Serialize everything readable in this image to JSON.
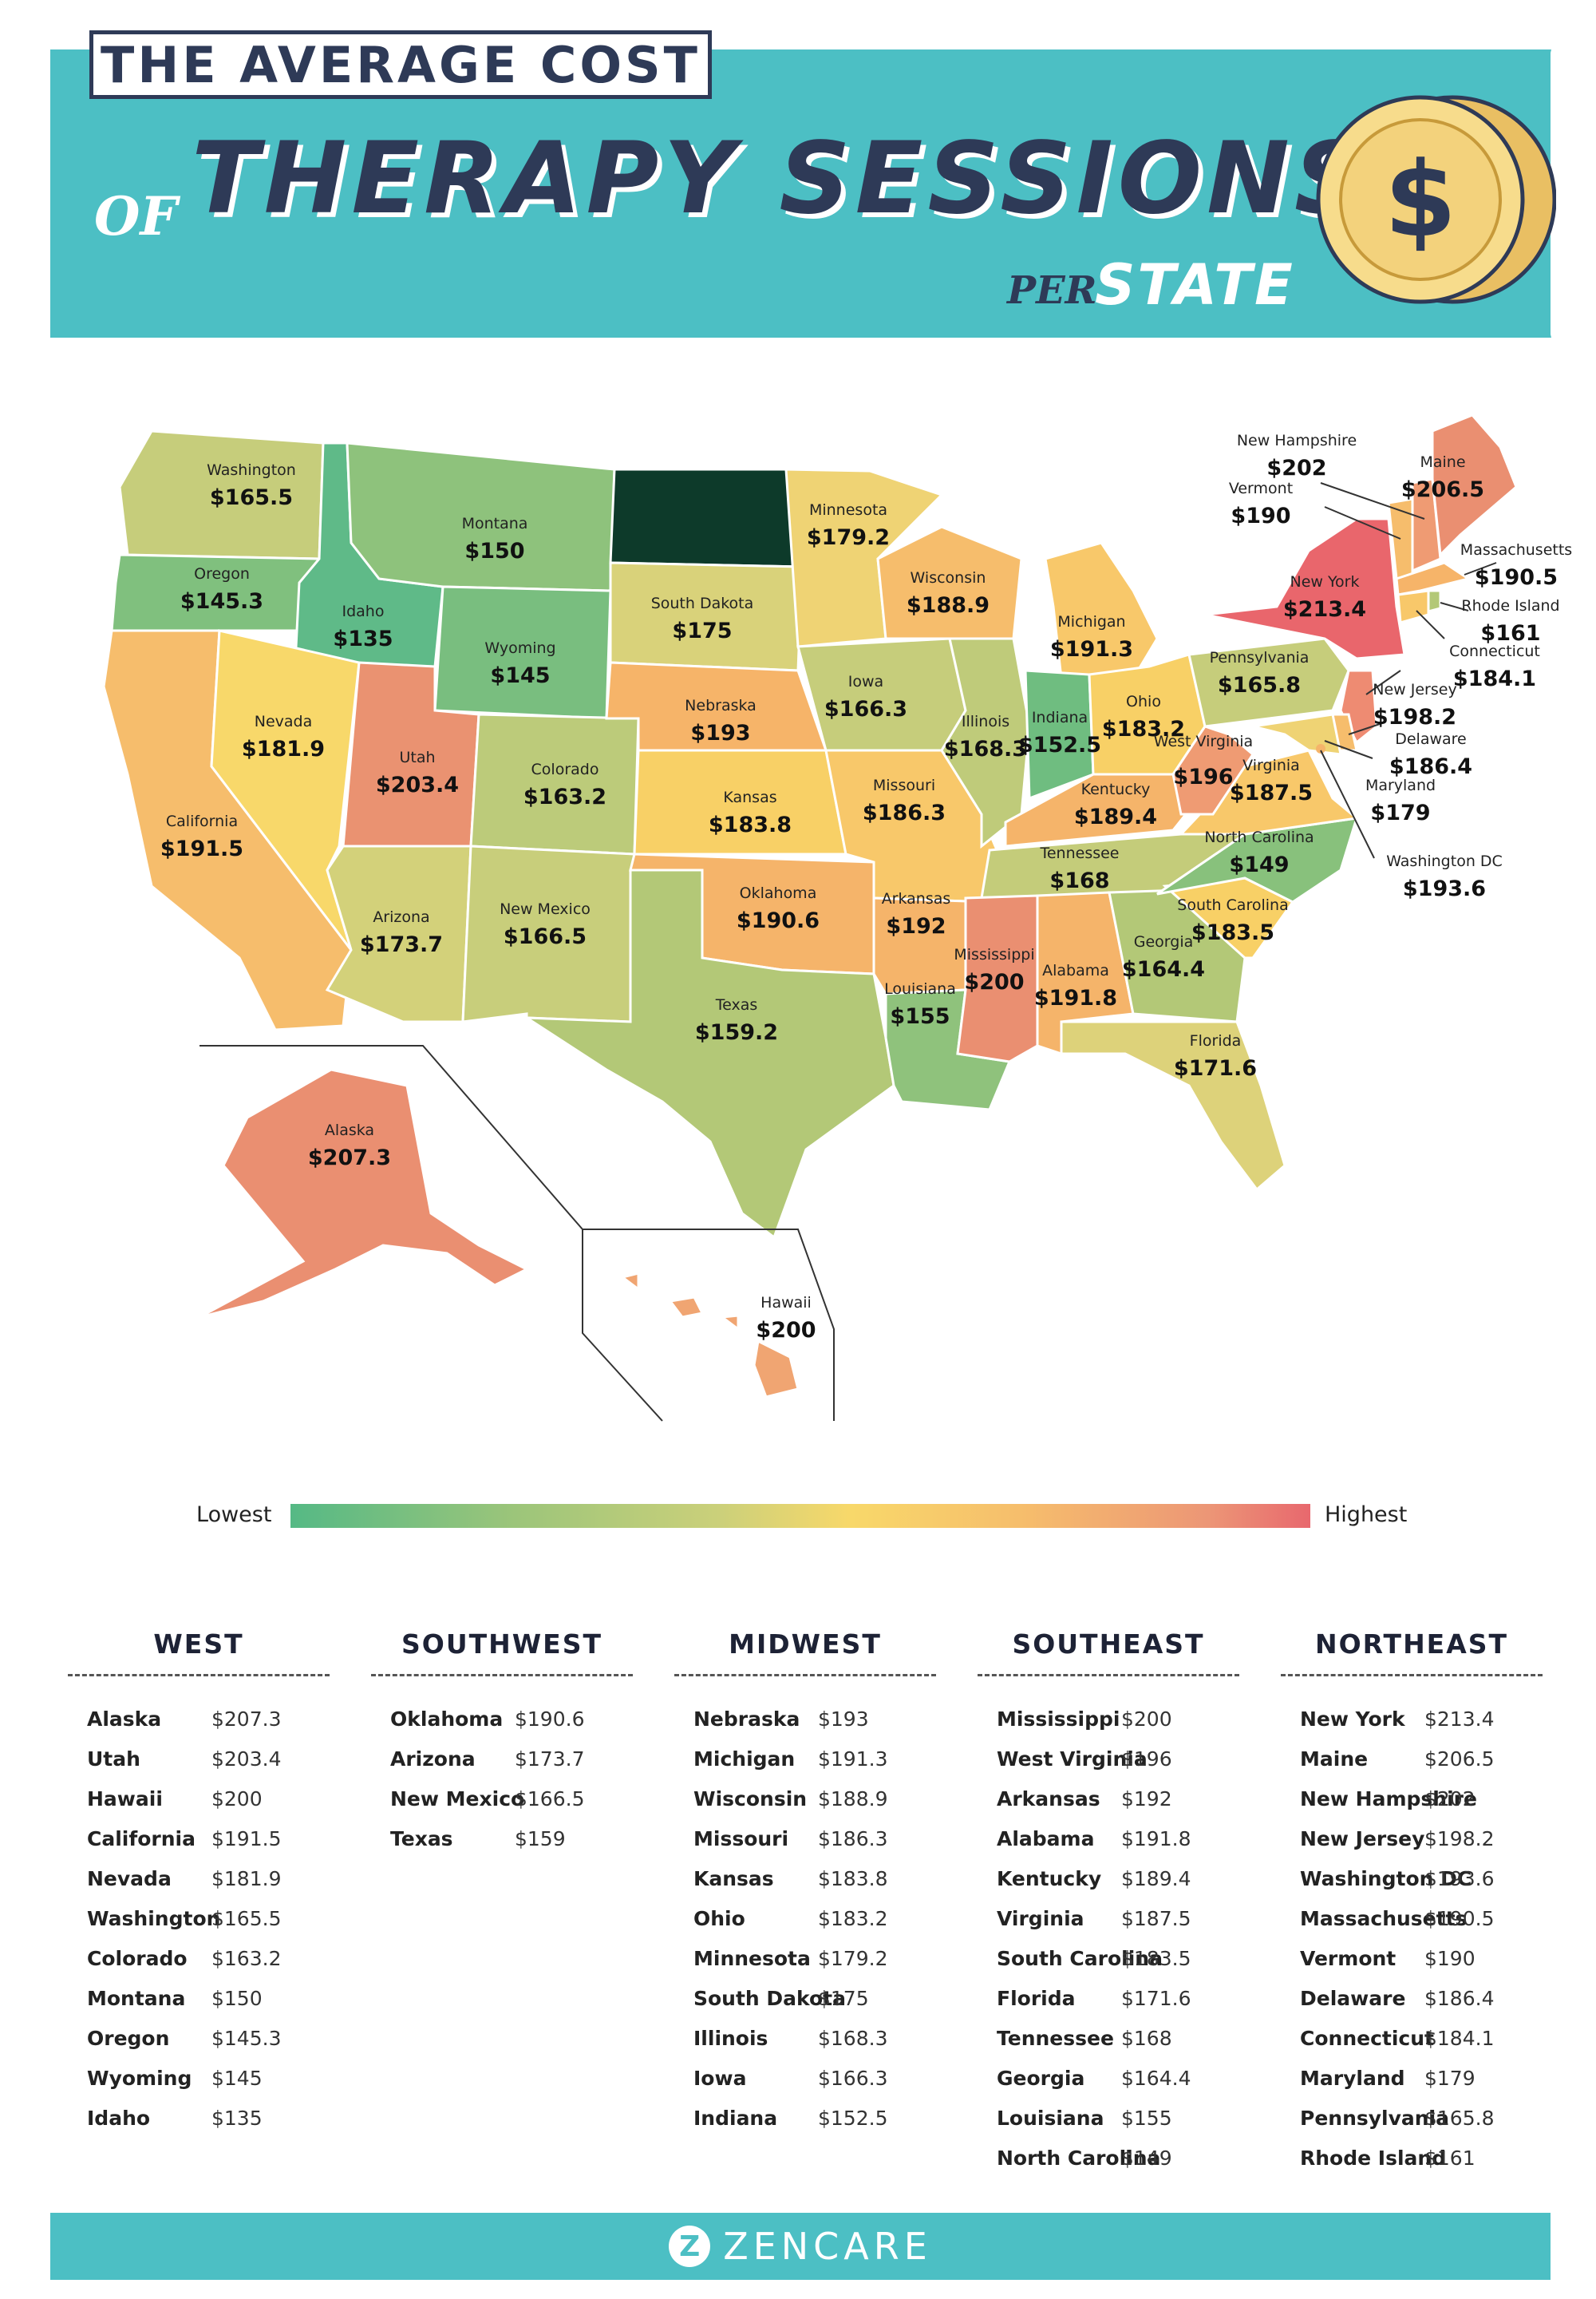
{
  "header": {
    "top_title": "THE AVERAGE COST",
    "of_word": "OF",
    "main_title": "THERAPY SESSIONS",
    "per_word": "PER",
    "state_word": "STATE",
    "coin_symbol": "$"
  },
  "colors": {
    "banner": "#4cbfc4",
    "title_dark": "#2e3a57",
    "coin_gold": "#f5d98a",
    "coin_edge": "#c79a3a",
    "lowest": "#55b985",
    "highest": "#e8686e"
  },
  "map_states": {
    "washington": {
      "name": "Washington",
      "value": "$165.5"
    },
    "oregon": {
      "name": "Oregon",
      "value": "$145.3"
    },
    "california": {
      "name": "California",
      "value": "$191.5"
    },
    "idaho": {
      "name": "Idaho",
      "value": "$135"
    },
    "nevada": {
      "name": "Nevada",
      "value": "$181.9"
    },
    "montana": {
      "name": "Montana",
      "value": "$150"
    },
    "wyoming": {
      "name": "Wyoming",
      "value": "$145"
    },
    "utah": {
      "name": "Utah",
      "value": "$203.4"
    },
    "arizona": {
      "name": "Arizona",
      "value": "$173.7"
    },
    "colorado": {
      "name": "Colorado",
      "value": "$163.2"
    },
    "new_mexico": {
      "name": "New Mexico",
      "value": "$166.5"
    },
    "north_dakota": {
      "name": "",
      "value": ""
    },
    "south_dakota": {
      "name": "South Dakota",
      "value": "$175"
    },
    "nebraska": {
      "name": "Nebraska",
      "value": "$193"
    },
    "kansas": {
      "name": "Kansas",
      "value": "$183.8"
    },
    "oklahoma": {
      "name": "Oklahoma",
      "value": "$190.6"
    },
    "texas": {
      "name": "Texas",
      "value": "$159.2"
    },
    "minnesota": {
      "name": "Minnesota",
      "value": "$179.2"
    },
    "iowa": {
      "name": "Iowa",
      "value": "$166.3"
    },
    "missouri": {
      "name": "Missouri",
      "value": "$186.3"
    },
    "arkansas": {
      "name": "Arkansas",
      "value": "$192"
    },
    "louisiana": {
      "name": "Louisiana",
      "value": "$155"
    },
    "wisconsin": {
      "name": "Wisconsin",
      "value": "$188.9"
    },
    "illinois": {
      "name": "Illinois",
      "value": "$168.3"
    },
    "michigan": {
      "name": "Michigan",
      "value": "$191.3"
    },
    "indiana": {
      "name": "Indiana",
      "value": "$152.5"
    },
    "ohio": {
      "name": "Ohio",
      "value": "$183.2"
    },
    "kentucky": {
      "name": "Kentucky",
      "value": "$189.4"
    },
    "tennessee": {
      "name": "Tennessee",
      "value": "$168"
    },
    "mississippi": {
      "name": "Mississippi",
      "value": "$200"
    },
    "alabama": {
      "name": "Alabama",
      "value": "$191.8"
    },
    "georgia": {
      "name": "Georgia",
      "value": "$164.4"
    },
    "florida": {
      "name": "Florida",
      "value": "$171.6"
    },
    "south_carolina": {
      "name": "South Carolina",
      "value": "$183.5"
    },
    "north_carolina": {
      "name": "North Carolina",
      "value": "$149"
    },
    "virginia": {
      "name": "Virginia",
      "value": "$187.5"
    },
    "west_virginia": {
      "name": "West Virginia",
      "value": "$196"
    },
    "pennsylvania": {
      "name": "Pennsylvania",
      "value": "$165.8"
    },
    "new_york": {
      "name": "New York",
      "value": "$213.4"
    },
    "maine": {
      "name": "Maine",
      "value": "$206.5"
    },
    "new_hampshire": {
      "name": "New Hampshire",
      "value": "$202"
    },
    "vermont": {
      "name": "Vermont",
      "value": "$190"
    },
    "massachusetts": {
      "name": "Massachusetts",
      "value": "$190.5"
    },
    "rhode_island": {
      "name": "Rhode Island",
      "value": "$161"
    },
    "connecticut": {
      "name": "Connecticut",
      "value": "$184.1"
    },
    "new_jersey": {
      "name": "New Jersey",
      "value": "$198.2"
    },
    "delaware": {
      "name": "Delaware",
      "value": "$186.4"
    },
    "maryland": {
      "name": "Maryland",
      "value": "$179"
    },
    "washington_dc": {
      "name": "Washington DC",
      "value": "$193.6"
    },
    "alaska": {
      "name": "Alaska",
      "value": "$207.3"
    },
    "hawaii": {
      "name": "Hawaii",
      "value": "$200"
    }
  },
  "legend": {
    "lowest": "Lowest",
    "highest": "Highest"
  },
  "regions": [
    {
      "title": "WEST",
      "rows": [
        {
          "state": "Alaska",
          "cost": "$207.3"
        },
        {
          "state": "Utah",
          "cost": "$203.4"
        },
        {
          "state": "Hawaii",
          "cost": "$200"
        },
        {
          "state": "California",
          "cost": "$191.5"
        },
        {
          "state": "Nevada",
          "cost": "$181.9"
        },
        {
          "state": "Washington",
          "cost": "$165.5"
        },
        {
          "state": "Colorado",
          "cost": "$163.2"
        },
        {
          "state": "Montana",
          "cost": "$150"
        },
        {
          "state": "Oregon",
          "cost": "$145.3"
        },
        {
          "state": "Wyoming",
          "cost": "$145"
        },
        {
          "state": "Idaho",
          "cost": "$135"
        }
      ]
    },
    {
      "title": "SOUTHWEST",
      "rows": [
        {
          "state": "Oklahoma",
          "cost": "$190.6"
        },
        {
          "state": "Arizona",
          "cost": "$173.7"
        },
        {
          "state": "New Mexico",
          "cost": "$166.5"
        },
        {
          "state": "Texas",
          "cost": "$159"
        }
      ]
    },
    {
      "title": "MIDWEST",
      "rows": [
        {
          "state": "Nebraska",
          "cost": "$193"
        },
        {
          "state": "Michigan",
          "cost": "$191.3"
        },
        {
          "state": "Wisconsin",
          "cost": "$188.9"
        },
        {
          "state": "Missouri",
          "cost": "$186.3"
        },
        {
          "state": "Kansas",
          "cost": "$183.8"
        },
        {
          "state": "Ohio",
          "cost": "$183.2"
        },
        {
          "state": "Minnesota",
          "cost": "$179.2"
        },
        {
          "state": "South Dakota",
          "cost": "$175"
        },
        {
          "state": "Illinois",
          "cost": "$168.3"
        },
        {
          "state": "Iowa",
          "cost": "$166.3"
        },
        {
          "state": "Indiana",
          "cost": "$152.5"
        }
      ]
    },
    {
      "title": "SOUTHEAST",
      "rows": [
        {
          "state": "Mississippi",
          "cost": "$200"
        },
        {
          "state": "West Virginia",
          "cost": "$196"
        },
        {
          "state": "Arkansas",
          "cost": "$192"
        },
        {
          "state": "Alabama",
          "cost": "$191.8"
        },
        {
          "state": "Kentucky",
          "cost": "$189.4"
        },
        {
          "state": "Virginia",
          "cost": "$187.5"
        },
        {
          "state": "South Carolina",
          "cost": "$183.5"
        },
        {
          "state": "Florida",
          "cost": "$171.6"
        },
        {
          "state": "Tennessee",
          "cost": "$168"
        },
        {
          "state": "Georgia",
          "cost": "$164.4"
        },
        {
          "state": "Louisiana",
          "cost": "$155"
        },
        {
          "state": "North Carolina",
          "cost": "$149"
        }
      ]
    },
    {
      "title": "NORTHEAST",
      "rows": [
        {
          "state": "New York",
          "cost": "$213.4"
        },
        {
          "state": "Maine",
          "cost": "$206.5"
        },
        {
          "state": "New Hampshire",
          "cost": "$202"
        },
        {
          "state": "New Jersey",
          "cost": "$198.2"
        },
        {
          "state": "Washington DC",
          "cost": "$193.6"
        },
        {
          "state": "Massachusetts",
          "cost": "$190.5"
        },
        {
          "state": "Vermont",
          "cost": "$190"
        },
        {
          "state": "Delaware",
          "cost": "$186.4"
        },
        {
          "state": "Connecticut",
          "cost": "$184.1"
        },
        {
          "state": "Maryland",
          "cost": "$179"
        },
        {
          "state": "Pennsylvania",
          "cost": "$165.8"
        },
        {
          "state": "Rhode Island",
          "cost": "$161"
        }
      ]
    }
  ],
  "footer": {
    "logo_letter": "Z",
    "brand": "ZENCARE"
  }
}
